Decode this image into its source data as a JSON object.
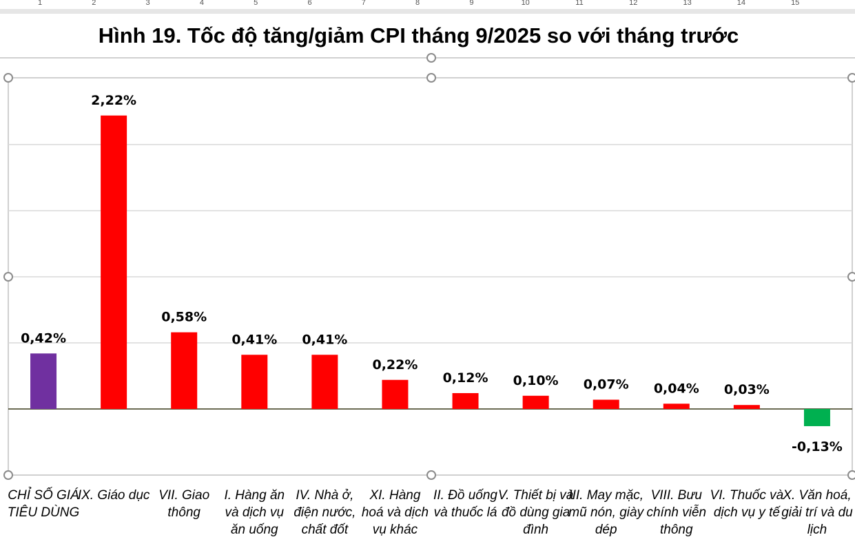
{
  "ruler": {
    "numbers": [
      "1",
      "2",
      "3",
      "4",
      "5",
      "6",
      "7",
      "8",
      "9",
      "10",
      "11",
      "12",
      "13",
      "14",
      "15"
    ]
  },
  "title": "Hình 19. Tốc độ tăng/giảm CPI tháng 9/2025 so với tháng trước",
  "chart_data": {
    "type": "bar",
    "title": "Hình 19. Tốc độ tăng/giảm CPI tháng 9/2025 so với tháng trước",
    "xlabel": "",
    "ylabel": "",
    "ylim": [
      -0.5,
      2.5
    ],
    "grid": true,
    "legend": "none",
    "categories": [
      "CHỈ SỐ GIÁ TIÊU DÙNG",
      "IX. Giáo dục",
      "VII. Giao thông",
      "I. Hàng ăn và dịch vụ ăn uống",
      "IV. Nhà ở, điện nước, chất đốt",
      "XI. Hàng hoá và dịch vụ khác",
      "II. Đồ uống và thuốc lá",
      "V. Thiết bị và đồ dùng gia đình",
      "III. May mặc, mũ nón, giày dép",
      "VIII. Bưu chính viễn thông",
      "VI. Thuốc và dịch vụ y tế",
      "X. Văn hoá, giải trí và du lịch"
    ],
    "values": [
      0.42,
      2.22,
      0.58,
      0.41,
      0.41,
      0.22,
      0.12,
      0.1,
      0.07,
      0.04,
      0.03,
      -0.13
    ],
    "data_labels": [
      "0,42%",
      "2,22%",
      "0,58%",
      "0,41%",
      "0,41%",
      "0,22%",
      "0,12%",
      "0,10%",
      "0,07%",
      "0,04%",
      "0,03%",
      "-0,13%"
    ],
    "colors": {
      "total": "#7030A0",
      "positive": "#FF0000",
      "negative": "#00B050"
    }
  }
}
